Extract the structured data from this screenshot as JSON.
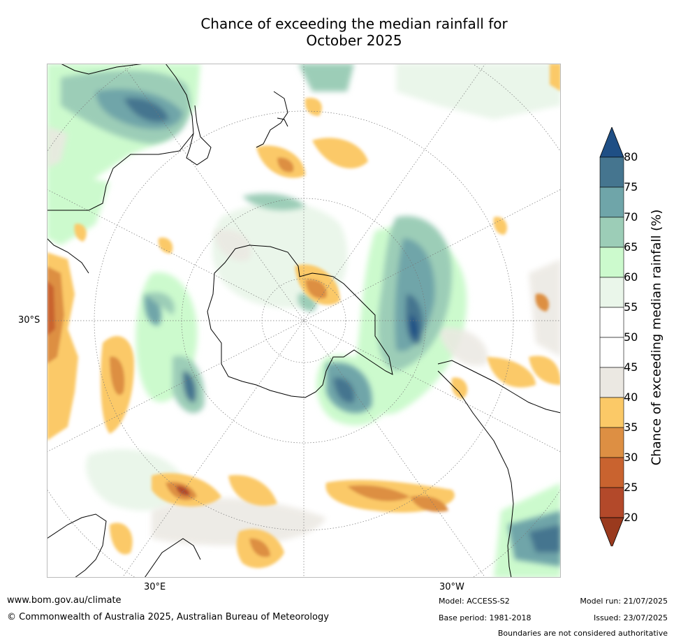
{
  "title_line1": "Chance of exceeding the median rainfall for",
  "title_line2": "October 2025",
  "colorbar": {
    "label": "Chance of exceeding median rainfall (%)",
    "ticks": [
      "20",
      "25",
      "30",
      "35",
      "40",
      "45",
      "50",
      "55",
      "60",
      "65",
      "70",
      "75",
      "80"
    ],
    "colors": [
      "#9a3a1e",
      "#b3492a",
      "#c9632f",
      "#dd8f43",
      "#fbc967",
      "#ebe8e2",
      "#ffffff",
      "#ffffff",
      "#eaf6ea",
      "#ccfacd",
      "#9ccdb7",
      "#6fa5a9",
      "#45758f",
      "#1f4f85"
    ]
  },
  "axis_labels": {
    "lat": "30°S",
    "lon_east": "30°E",
    "lon_west": "30°W"
  },
  "footer": {
    "website": "www.bom.gov.au/climate",
    "copyright": "© Commonwealth of Australia 2025, Australian Bureau of Meteorology",
    "model": "Model: ACCESS-S2",
    "base_period": "Base period: 1981-2018",
    "model_run": "Model run: 21/07/2025",
    "issued": "Issued: 23/07/2025",
    "disclaimer": "Boundaries are not considered authoritative"
  }
}
